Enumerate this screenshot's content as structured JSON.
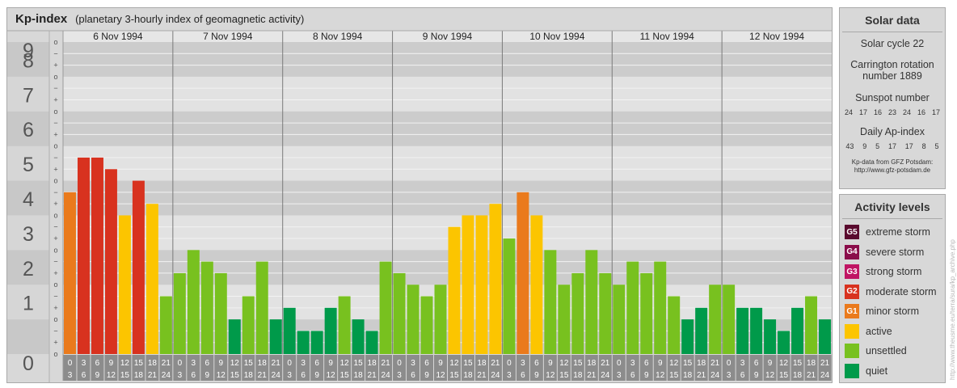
{
  "header": {
    "title": "Kp-index",
    "subtitle": "(planetary 3-hourly index of geomagnetic activity)"
  },
  "chart_data": {
    "type": "bar",
    "title": "Kp-index",
    "subtitle": "(planetary 3-hourly index of geomagnetic activity)",
    "ylim": [
      0,
      9
    ],
    "y_ticks": [
      "0",
      "1",
      "2",
      "3",
      "4",
      "5",
      "6",
      "7",
      "8",
      "9"
    ],
    "y_subticks": [
      "o",
      "+",
      "−",
      "o",
      "+",
      "−",
      "o",
      "+",
      "−",
      "o",
      "+",
      "−",
      "o",
      "+",
      "−",
      "o",
      "+",
      "−",
      "o",
      "+",
      "−",
      "o",
      "+",
      "−",
      "o",
      "+",
      "−",
      "o"
    ],
    "days": [
      "6 Nov 1994",
      "7 Nov 1994",
      "8 Nov 1994",
      "9 Nov 1994",
      "10 Nov 1994",
      "11 Nov 1994",
      "12 Nov 1994"
    ],
    "interval_labels": [
      [
        "0",
        "3"
      ],
      [
        "3",
        "6"
      ],
      [
        "6",
        "9"
      ],
      [
        "9",
        "12"
      ],
      [
        "12",
        "15"
      ],
      [
        "15",
        "18"
      ],
      [
        "18",
        "21"
      ],
      [
        "21",
        "24"
      ]
    ],
    "values": [
      [
        4.667,
        5.667,
        5.667,
        5.333,
        4.0,
        5.0,
        4.333,
        1.667
      ],
      [
        2.333,
        3.0,
        2.667,
        2.333,
        1.0,
        1.667,
        2.667,
        1.0
      ],
      [
        1.333,
        0.667,
        0.667,
        1.333,
        1.667,
        1.0,
        0.667,
        2.667
      ],
      [
        2.333,
        2.0,
        1.667,
        2.0,
        3.667,
        4.0,
        4.0,
        4.333
      ],
      [
        3.333,
        4.667,
        4.0,
        3.0,
        2.0,
        2.333,
        3.0,
        2.333
      ],
      [
        2.0,
        2.667,
        2.333,
        2.667,
        1.667,
        1.0,
        1.333,
        2.0
      ],
      [
        2.0,
        1.333,
        1.333,
        1.0,
        0.667,
        1.333,
        1.667,
        1.0
      ]
    ],
    "colors": {
      "quiet": "#009a4a",
      "unsettled": "#78c11f",
      "active": "#fcc500",
      "minor_storm": "#ea7a1c",
      "moderate_storm": "#d8321f"
    },
    "grid": true
  },
  "solar": {
    "heading": "Solar data",
    "cycle": "Solar cycle 22",
    "rotation_line1": "Carrington rotation",
    "rotation_line2": "number 1889",
    "sunspot_heading": "Sunspot number",
    "sunspot_values": [
      "24",
      "17",
      "16",
      "23",
      "24",
      "16",
      "17"
    ],
    "ap_heading": "Daily Ap-index",
    "ap_values": [
      "43",
      "9",
      "5",
      "17",
      "17",
      "8",
      "5"
    ],
    "source_line1": "Kp-data from GFZ Potsdam:",
    "source_line2": "http://www.gfz-potsdam.de"
  },
  "activity": {
    "heading": "Activity levels",
    "items": [
      {
        "code": "G5",
        "label": "extreme storm",
        "color": "#5a0b2e"
      },
      {
        "code": "G4",
        "label": "severe storm",
        "color": "#8a0d4a"
      },
      {
        "code": "G3",
        "label": "strong storm",
        "color": "#c01563"
      },
      {
        "code": "G2",
        "label": "moderate storm",
        "color": "#d8321f"
      },
      {
        "code": "G1",
        "label": "minor storm",
        "color": "#ea7a1c"
      },
      {
        "code": "",
        "label": "active",
        "color": "#fcc500"
      },
      {
        "code": "",
        "label": "unsettled",
        "color": "#78c11f"
      },
      {
        "code": "",
        "label": "quiet",
        "color": "#009a4a"
      }
    ]
  },
  "watermark": "http://www.theusme.eu/terra/sura/kp_archive.php"
}
